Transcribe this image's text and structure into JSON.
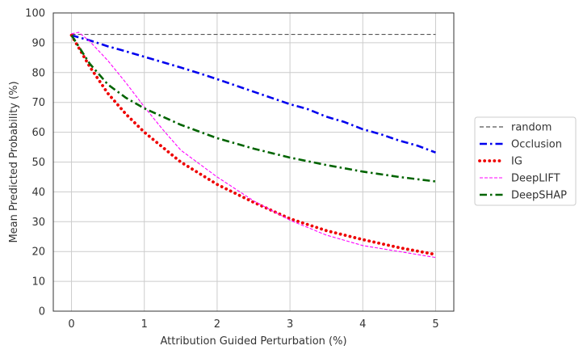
{
  "chart_data": {
    "type": "line",
    "title": "",
    "xlabel": "Attribution Guided Perturbation (%)",
    "ylabel": "Mean Predicted Probability (%)",
    "xlim": [
      -0.25,
      5.25
    ],
    "ylim": [
      0,
      100
    ],
    "xticks": [
      0,
      1,
      2,
      3,
      4,
      5
    ],
    "yticks": [
      0,
      10,
      20,
      30,
      40,
      50,
      60,
      70,
      80,
      90,
      100
    ],
    "grid": true,
    "legend_position": "right, outside the plot area",
    "series": [
      {
        "name": "random",
        "color": "#555555",
        "style": "dashed",
        "x": [
          0,
          0.5,
          1,
          1.5,
          2,
          2.5,
          3,
          3.5,
          4,
          4.5,
          5
        ],
        "y": [
          92.8,
          92.8,
          92.8,
          92.8,
          92.8,
          92.8,
          92.8,
          92.8,
          92.8,
          92.8,
          92.8
        ]
      },
      {
        "name": "Occlusion",
        "color": "#0000ee",
        "style": "dashdot",
        "x": [
          0,
          0.25,
          0.5,
          0.75,
          1,
          1.25,
          1.5,
          1.75,
          2,
          2.25,
          2.5,
          2.75,
          3,
          3.25,
          3.5,
          3.75,
          4,
          4.25,
          4.5,
          4.75,
          5
        ],
        "y": [
          92.5,
          90.8,
          88.8,
          87.1,
          85.3,
          83.5,
          81.7,
          79.8,
          77.8,
          75.7,
          73.6,
          71.5,
          69.4,
          67.7,
          65.2,
          63.4,
          61.0,
          59.3,
          57.2,
          55.5,
          53.2
        ]
      },
      {
        "name": "IG",
        "color": "#ee0000",
        "style": "dotted",
        "x": [
          0,
          0.25,
          0.5,
          0.75,
          1,
          1.5,
          2,
          2.5,
          3,
          3.5,
          4,
          4.5,
          5
        ],
        "y": [
          92.5,
          82,
          73,
          66,
          60,
          50,
          42.5,
          36.5,
          31,
          27,
          24,
          21.3,
          19
        ]
      },
      {
        "name": "DeepLIFT",
        "color": "#ff00ff",
        "style": "thin-dashed",
        "x": [
          0,
          0.1,
          0.25,
          0.5,
          0.75,
          1,
          1.25,
          1.5,
          2,
          2.5,
          3,
          3.5,
          4,
          4.5,
          5
        ],
        "y": [
          93,
          93.5,
          90.5,
          84,
          76.5,
          68.5,
          61,
          54,
          45,
          37,
          30.5,
          25.5,
          22,
          20,
          18
        ]
      },
      {
        "name": "DeepSHAP",
        "color": "#006400",
        "style": "dashdot",
        "x": [
          0,
          0.25,
          0.5,
          0.75,
          1,
          1.5,
          2,
          2.5,
          3,
          3.5,
          4,
          4.5,
          5
        ],
        "y": [
          92.5,
          83,
          76,
          71.5,
          68,
          62.5,
          58,
          54.5,
          51.5,
          49,
          46.8,
          45,
          43.5
        ]
      }
    ]
  }
}
